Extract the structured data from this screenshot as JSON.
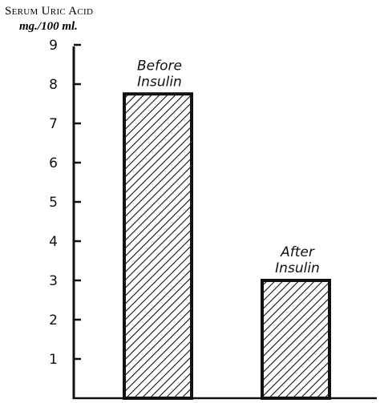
{
  "chart_data": {
    "type": "bar",
    "title": "",
    "ylabel_line1": "Serum Uric Acid",
    "ylabel_line2": "mg./100 ml.",
    "xlabel": "",
    "categories": [
      [
        "Before",
        "Insulin"
      ],
      [
        "After",
        "Insulin"
      ]
    ],
    "values": [
      7.75,
      3.0
    ],
    "ylim": [
      0,
      9
    ],
    "yticks": [
      1,
      2,
      3,
      4,
      5,
      6,
      7,
      8,
      9
    ],
    "grid": false,
    "bar_fill": "diagonal-hatch",
    "colors": {
      "ink": "#111111",
      "background": "#ffffff"
    }
  }
}
